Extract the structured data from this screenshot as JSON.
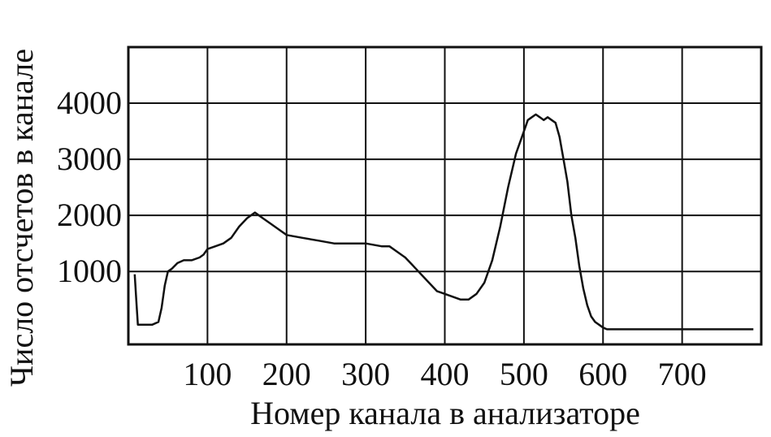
{
  "chart_data": {
    "type": "line",
    "title": "",
    "xlabel": "Номер канала в анализаторе",
    "ylabel": "Число отсчетов в канале",
    "xlim": [
      0,
      800
    ],
    "ylim": [
      -300,
      5000
    ],
    "grid": true,
    "xticks": [
      100,
      200,
      300,
      400,
      500,
      600,
      700
    ],
    "yticks": [
      1000,
      2000,
      3000,
      4000
    ],
    "xtick_labels": [
      "100",
      "200",
      "300",
      "400",
      "500",
      "600",
      "700"
    ],
    "ytick_labels": [
      "1000",
      "2000",
      "3000",
      "4000"
    ],
    "series": [
      {
        "name": "",
        "x": [
          8,
          10,
          12,
          20,
          30,
          38,
          42,
          46,
          50,
          55,
          62,
          70,
          80,
          90,
          95,
          100,
          110,
          120,
          130,
          140,
          150,
          155,
          160,
          165,
          170,
          180,
          190,
          200,
          220,
          240,
          260,
          280,
          300,
          320,
          330,
          340,
          350,
          360,
          370,
          380,
          390,
          400,
          410,
          420,
          430,
          440,
          450,
          460,
          470,
          480,
          490,
          500,
          505,
          510,
          515,
          520,
          525,
          530,
          535,
          540,
          545,
          550,
          555,
          560,
          565,
          570,
          575,
          580,
          585,
          590,
          595,
          600,
          605,
          610,
          650,
          700,
          750,
          790
        ],
        "values": [
          950,
          500,
          50,
          50,
          50,
          100,
          350,
          750,
          1000,
          1050,
          1150,
          1200,
          1200,
          1250,
          1300,
          1400,
          1450,
          1500,
          1600,
          1800,
          1950,
          2000,
          2050,
          2000,
          1950,
          1850,
          1750,
          1650,
          1600,
          1550,
          1500,
          1500,
          1500,
          1450,
          1450,
          1350,
          1250,
          1100,
          950,
          800,
          650,
          600,
          550,
          500,
          500,
          600,
          800,
          1200,
          1800,
          2500,
          3100,
          3500,
          3700,
          3750,
          3800,
          3750,
          3700,
          3750,
          3700,
          3650,
          3400,
          3000,
          2600,
          2000,
          1600,
          1100,
          700,
          400,
          200,
          100,
          50,
          0,
          -30,
          -30,
          -30,
          -30,
          -30,
          -30
        ]
      }
    ],
    "colors": {
      "line": "#111111",
      "grid": "#111111",
      "background": "#ffffff"
    }
  }
}
